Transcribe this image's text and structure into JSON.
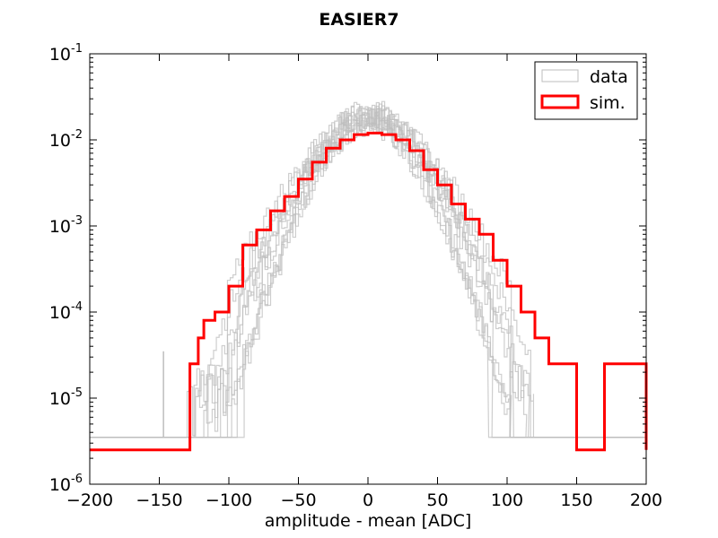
{
  "chart_data": {
    "type": "line",
    "title": "EASIER7",
    "xlabel": "amplitude - mean [ADC]",
    "ylabel": "",
    "xlim": [
      -200,
      200
    ],
    "ylim": [
      1e-06,
      0.1
    ],
    "yscale": "log",
    "grid": false,
    "legend_position": "top-right",
    "x_ticks": [
      -200,
      -150,
      -100,
      -50,
      0,
      50,
      100,
      150,
      200
    ],
    "x_tick_labels": [
      "−200",
      "−150",
      "−100",
      "−50",
      "0",
      "50",
      "100",
      "150",
      "200"
    ],
    "y_ticks": [
      {
        "value": 1e-06,
        "base": "10",
        "exp": "-6"
      },
      {
        "value": 1e-05,
        "base": "10",
        "exp": "-5"
      },
      {
        "value": 0.0001,
        "base": "10",
        "exp": "-4"
      },
      {
        "value": 0.001,
        "base": "10",
        "exp": "-3"
      },
      {
        "value": 0.01,
        "base": "10",
        "exp": "-2"
      },
      {
        "value": 0.1,
        "base": "10",
        "exp": "-1"
      }
    ],
    "series": [
      {
        "name": "data",
        "style": "histogram",
        "color": "#bdbdbd",
        "note_curves": 10,
        "peak": 0.019,
        "sigma_adc": 22,
        "floor": 3.5e-06,
        "x_extent": [
          -130,
          130
        ],
        "isolated_bins": [
          {
            "x": -147,
            "y": 3.5e-05
          }
        ]
      },
      {
        "name": "sim.",
        "style": "histogram",
        "color": "#ff0000",
        "x": [
          -200,
          -128,
          -122,
          -118,
          -110,
          -100,
          -90,
          -80,
          -70,
          -60,
          -50,
          -40,
          -30,
          -20,
          -10,
          0,
          10,
          20,
          30,
          40,
          50,
          60,
          70,
          80,
          90,
          100,
          110,
          120,
          130,
          140,
          150,
          170,
          200
        ],
        "values": [
          2.5e-06,
          2.5e-05,
          5e-05,
          8e-05,
          0.0001,
          0.0002,
          0.0006,
          0.0009,
          0.0015,
          0.0022,
          0.0035,
          0.0055,
          0.008,
          0.01,
          0.0115,
          0.012,
          0.0115,
          0.01,
          0.0075,
          0.0045,
          0.003,
          0.0018,
          0.0012,
          0.0008,
          0.0004,
          0.0002,
          0.0001,
          5e-05,
          2.5e-05,
          2.5e-05,
          2.5e-06,
          2.5e-05,
          2.5e-06
        ]
      }
    ]
  },
  "legend": {
    "items": [
      {
        "label": "data",
        "color": "#bdbdbd"
      },
      {
        "label": "sim.",
        "color": "#ff0000"
      }
    ]
  }
}
